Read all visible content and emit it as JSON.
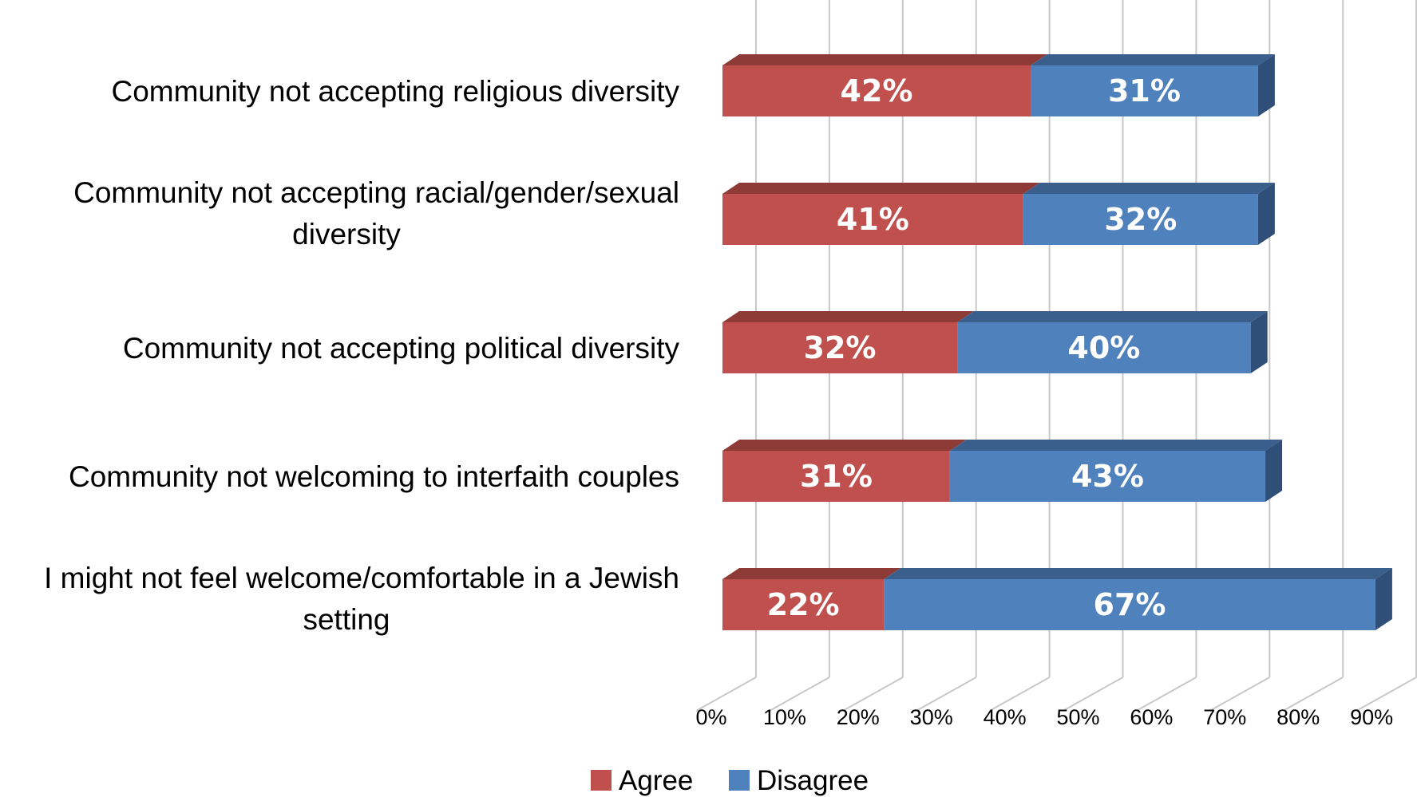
{
  "chart_data": {
    "type": "bar",
    "orientation": "horizontal",
    "stacked": true,
    "three_d": true,
    "categories": [
      [
        "Community not accepting religious diversity"
      ],
      [
        "Community not accepting racial/gender/sexual",
        "diversity"
      ],
      [
        "Community not accepting political diversity"
      ],
      [
        "Community not welcoming to interfaith couples"
      ],
      [
        "I might not feel welcome/comfortable in a Jewish",
        "setting"
      ]
    ],
    "series": [
      {
        "name": "Agree",
        "values": [
          42,
          41,
          32,
          31,
          22
        ],
        "labels": [
          "42%",
          "41%",
          "32%",
          "31%",
          "22%"
        ],
        "color": "#c0504d",
        "top_color": "#8e3b38",
        "side_color": "#8e3b38"
      },
      {
        "name": "Disagree",
        "values": [
          31,
          32,
          40,
          43,
          67
        ],
        "labels": [
          "31%",
          "32%",
          "40%",
          "43%",
          "67%"
        ],
        "color": "#4f81bd",
        "top_color": "#3a5f8c",
        "side_color": "#2f4f78"
      }
    ],
    "xlim": [
      0,
      90
    ],
    "xticks": [
      "0%",
      "10%",
      "20%",
      "30%",
      "40%",
      "50%",
      "60%",
      "70%",
      "80%",
      "90%"
    ],
    "grid": true,
    "legend_position": "bottom"
  }
}
